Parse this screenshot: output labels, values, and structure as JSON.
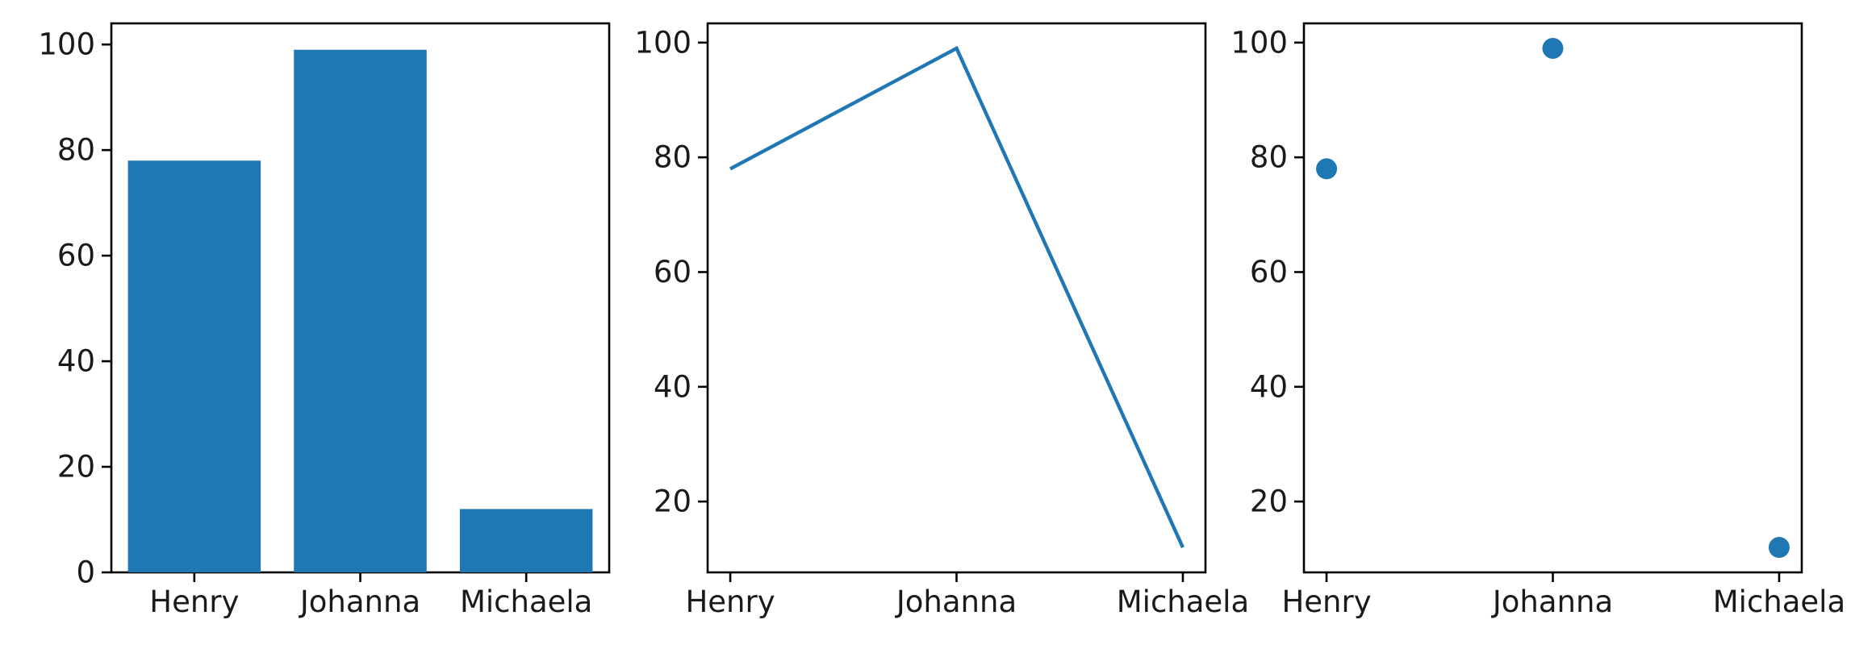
{
  "chart_data": [
    {
      "type": "bar",
      "categories": [
        "Henry",
        "Johanna",
        "Michaela"
      ],
      "values": [
        78,
        99,
        12
      ],
      "ylim": [
        0,
        104
      ],
      "yticks": [
        0,
        20,
        40,
        60,
        80,
        100
      ],
      "grid": false,
      "color": "#1f77b4"
    },
    {
      "type": "line",
      "categories": [
        "Henry",
        "Johanna",
        "Michaela"
      ],
      "values": [
        78,
        99,
        12
      ],
      "ylim": [
        7.65,
        103.35
      ],
      "yticks": [
        20,
        40,
        60,
        80,
        100
      ],
      "grid": false,
      "color": "#1f77b4"
    },
    {
      "type": "scatter",
      "categories": [
        "Henry",
        "Johanna",
        "Michaela"
      ],
      "values": [
        78,
        99,
        12
      ],
      "ylim": [
        7.65,
        103.35
      ],
      "yticks": [
        20,
        40,
        60,
        80,
        100
      ],
      "grid": false,
      "color": "#1f77b4"
    }
  ]
}
